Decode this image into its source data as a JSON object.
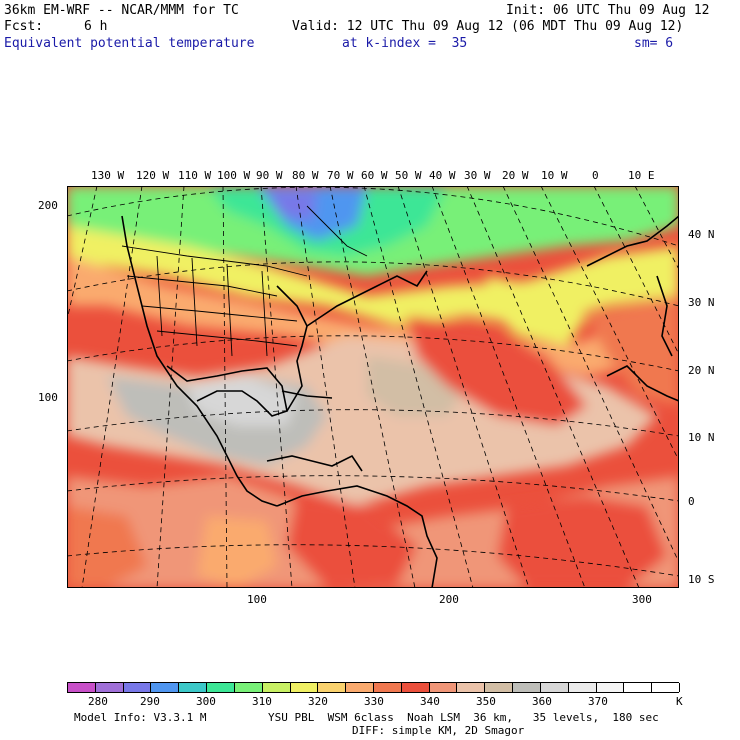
{
  "header": {
    "model_title": "36km EM-WRF -- NCAR/MMM for TC",
    "init": "Init: 06 UTC Thu 09 Aug 12",
    "fcst_label": "Fcst:",
    "fcst_value": "6 h",
    "valid": "Valid: 12 UTC Thu 09 Aug 12 (06 MDT Thu 09 Aug 12)",
    "field_name": "Equivalent potential temperature",
    "level": "at k-index =  35",
    "smoothing": "sm= 6"
  },
  "map": {
    "top_lon_labels": [
      "130 W",
      "120 W",
      "110 W",
      "100 W",
      "90 W",
      "80 W",
      "70 W",
      "60 W",
      "50 W",
      "40 W",
      "30 W",
      "20 W",
      "10 W",
      "0",
      "10 E"
    ],
    "right_lat_labels": [
      "40 N",
      "30 N",
      "20 N",
      "10 N",
      "0",
      "10 S"
    ],
    "left_grid_labels": [
      "200",
      "100"
    ],
    "bottom_grid_labels": [
      "100",
      "200",
      "300"
    ]
  },
  "colorbar": {
    "tick_labels": [
      "280",
      "290",
      "300",
      "310",
      "320",
      "330",
      "340",
      "350",
      "360",
      "370"
    ],
    "unit": "K",
    "colors": [
      "#c850c8",
      "#a070d8",
      "#7878e8",
      "#5096f0",
      "#3cc8c8",
      "#3ce696",
      "#78f078",
      "#c8f064",
      "#f0f064",
      "#fad26e",
      "#faaa6e",
      "#f07850",
      "#eb503c",
      "#f09678",
      "#ebc3aa",
      "#d2bea5",
      "#bebeb9",
      "#d7d7d7",
      "#ebebeb",
      "#f5f5f5",
      "#ffffff",
      "#ffffff"
    ]
  },
  "footer": {
    "model_info": "Model Info: V3.3.1 M",
    "physics_1": "YSU PBL  WSM 6class  Noah LSM  36 km,   35 levels,  180 sec",
    "physics_2": "DIFF: simple KM, 2D Smagor"
  }
}
